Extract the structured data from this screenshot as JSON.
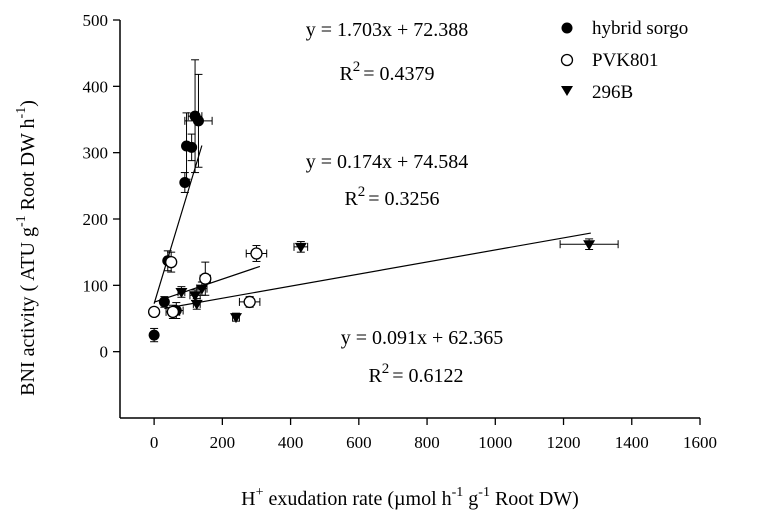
{
  "chart_data": {
    "type": "scatter",
    "xlabel": {
      "pre": "H",
      "sup1": "+",
      "mid1": " exudation rate (µmol h",
      "sup2": "-1",
      "mid2": " g",
      "sup3": "-1",
      "post": " Root DW)"
    },
    "ylabel": {
      "pre": "BNI activity ( ATU g",
      "sup1": "-1",
      "mid": " Root DW h",
      "sup2": "-1",
      "post": ")"
    },
    "xlim": [
      -100,
      1600
    ],
    "ylim": [
      -100,
      500
    ],
    "xticks": [
      0,
      200,
      400,
      600,
      800,
      1000,
      1200,
      1400,
      1600
    ],
    "yticks": [
      0,
      100,
      200,
      300,
      400,
      500
    ],
    "grid": false,
    "legend_position": "top-right",
    "series": [
      {
        "name": "hybrid sorgo",
        "marker": "filled-circle",
        "points": [
          {
            "x": 0,
            "y": 25,
            "xerr": 3,
            "yerr": 10
          },
          {
            "x": 30,
            "y": 75,
            "xerr": 10,
            "yerr": 8
          },
          {
            "x": 40,
            "y": 137,
            "xerr": 8,
            "yerr": 15
          },
          {
            "x": 65,
            "y": 62,
            "xerr": 20,
            "yerr": 12
          },
          {
            "x": 90,
            "y": 255,
            "xerr": 8,
            "yerr": 15
          },
          {
            "x": 95,
            "y": 310,
            "xerr": 10,
            "yerr": 50
          },
          {
            "x": 110,
            "y": 308,
            "xerr": 10,
            "yerr": 20
          },
          {
            "x": 120,
            "y": 355,
            "xerr": 20,
            "yerr": 85
          },
          {
            "x": 130,
            "y": 348,
            "xerr": 40,
            "yerr": 70
          }
        ]
      },
      {
        "name": "PVK801",
        "marker": "open-circle",
        "points": [
          {
            "x": 0,
            "y": 60,
            "xerr": 8,
            "yerr": 6
          },
          {
            "x": 50,
            "y": 135,
            "xerr": 12,
            "yerr": 15
          },
          {
            "x": 55,
            "y": 60,
            "xerr": 20,
            "yerr": 10
          },
          {
            "x": 150,
            "y": 110,
            "xerr": 15,
            "yerr": 25
          },
          {
            "x": 280,
            "y": 75,
            "xerr": 30,
            "yerr": 8
          },
          {
            "x": 300,
            "y": 148,
            "xerr": 30,
            "yerr": 12
          }
        ]
      },
      {
        "name": "296B",
        "marker": "filled-triangle-down",
        "points": [
          {
            "x": 80,
            "y": 90,
            "xerr": 10,
            "yerr": 8
          },
          {
            "x": 120,
            "y": 85,
            "xerr": 15,
            "yerr": 8
          },
          {
            "x": 125,
            "y": 72,
            "xerr": 10,
            "yerr": 8
          },
          {
            "x": 140,
            "y": 95,
            "xerr": 15,
            "yerr": 10
          },
          {
            "x": 240,
            "y": 52,
            "xerr": 10,
            "yerr": 6
          },
          {
            "x": 430,
            "y": 158,
            "xerr": 20,
            "yerr": 8
          },
          {
            "x": 1275,
            "y": 162,
            "xerr": 85,
            "yerr": 8
          }
        ]
      }
    ],
    "regressions": [
      {
        "series": "hybrid sorgo",
        "slope": 1.703,
        "intercept": 72.388,
        "x_range": [
          0,
          140
        ],
        "equation": "y = 1.703x + 72.388",
        "r2": "= 0.4379"
      },
      {
        "series": "PVK801",
        "slope": 0.174,
        "intercept": 74.584,
        "x_range": [
          0,
          310
        ],
        "equation": "y = 0.174x + 74.584",
        "r2": "= 0.3256"
      },
      {
        "series": "296B",
        "slope": 0.091,
        "intercept": 62.365,
        "x_range": [
          30,
          1280
        ],
        "equation": "y = 0.091x + 62.365",
        "r2": "= 0.6122"
      }
    ],
    "r_label": "R",
    "r_sup": "2"
  }
}
